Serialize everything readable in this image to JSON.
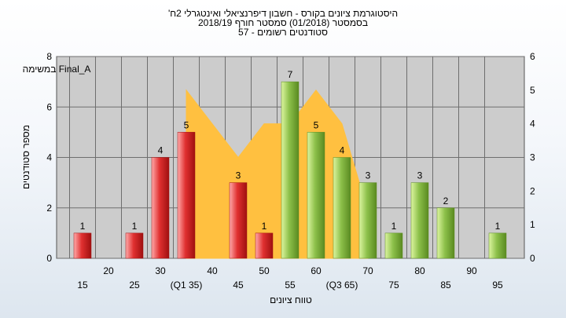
{
  "chart_data": {
    "type": "bar",
    "title_lines": [
      "היסטוגרמת ציונים בקורס - חשבון דיפרנציאלי ואינטגרלי 2ח'",
      "בסמסטר (01/2018) סמסטר חורף 2018/19",
      "סטודנטים רשומים - 57"
    ],
    "xlabel": "טווח ציונים",
    "ylabel": "מספר סטודנטים",
    "ylim": [
      0,
      8
    ],
    "y_ticks": [
      "0",
      "2",
      "4",
      "6",
      "8"
    ],
    "y2lim": [
      0,
      6
    ],
    "y2_ticks": [
      "0",
      "1",
      "2",
      "3",
      "4",
      "5",
      "6"
    ],
    "x_positions": [
      15,
      20,
      25,
      30,
      35,
      40,
      45,
      50,
      55,
      60,
      65,
      70,
      75,
      80,
      85,
      90,
      95
    ],
    "x_tick_labels": [
      "15",
      "20",
      "25",
      "30",
      "(Q1 35)",
      "40",
      "45",
      "50",
      "55",
      "60",
      "(Q3 65)",
      "70",
      "75",
      "80",
      "85",
      "90",
      "95"
    ],
    "bars": [
      {
        "x": 15,
        "value": 1,
        "label": "1",
        "status": "fail"
      },
      {
        "x": 25,
        "value": 1,
        "label": "1",
        "status": "fail"
      },
      {
        "x": 30,
        "value": 4,
        "label": "4",
        "status": "fail"
      },
      {
        "x": 35,
        "value": 5,
        "label": "5",
        "status": "fail"
      },
      {
        "x": 45,
        "value": 3,
        "label": "3",
        "status": "fail"
      },
      {
        "x": 50,
        "value": 1,
        "label": "1",
        "status": "fail"
      },
      {
        "x": 55,
        "value": 7,
        "label": "7",
        "status": "pass"
      },
      {
        "x": 60,
        "value": 5,
        "label": "5",
        "status": "pass"
      },
      {
        "x": 65,
        "value": 4,
        "label": "4",
        "status": "pass"
      },
      {
        "x": 70,
        "value": 3,
        "label": "3",
        "status": "pass"
      },
      {
        "x": 75,
        "value": 1,
        "label": "1",
        "status": "pass"
      },
      {
        "x": 80,
        "value": 3,
        "label": "3",
        "status": "pass"
      },
      {
        "x": 85,
        "value": 2,
        "label": "2",
        "status": "pass"
      },
      {
        "x": 95,
        "value": 1,
        "label": "1",
        "status": "pass"
      }
    ],
    "area_series": {
      "name": "Final_A במשימה",
      "axis": "right",
      "points": [
        [
          35,
          5
        ],
        [
          45,
          3
        ],
        [
          50,
          4
        ],
        [
          55,
          4
        ],
        [
          60,
          5
        ],
        [
          65,
          4
        ],
        [
          70,
          1.4
        ]
      ]
    },
    "colors": {
      "fail_light": "#ffaaaa",
      "fail": "#e03030",
      "fail_dark": "#a01010",
      "pass_light": "#ddf5a0",
      "pass": "#8cc04a",
      "pass_dark": "#5a8a20",
      "area_fill": "#ffc040",
      "plot_bg": "#cccccc",
      "grid": "#6e6e6e"
    }
  }
}
